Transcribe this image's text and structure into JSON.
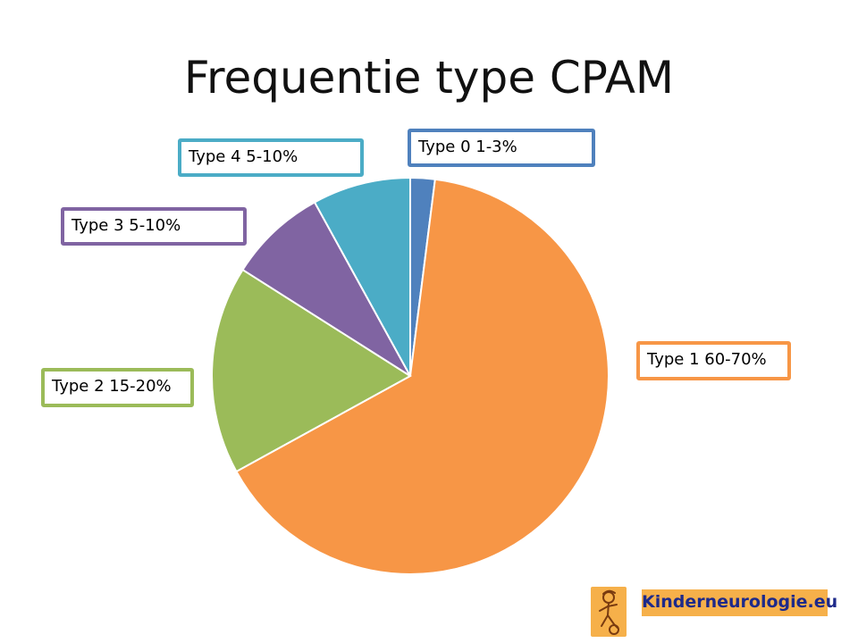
{
  "title": "Frequentie type CPAM",
  "colors": {
    "type0": "#4f81bd",
    "type1": "#f79646",
    "type2": "#9bbb59",
    "type3": "#8064a2",
    "type4": "#4bacc6",
    "logo_bg": "#f6b04a",
    "logo_text": "#1e2a8a"
  },
  "chart_data": {
    "type": "pie",
    "title": "Frequentie type CPAM",
    "categories": [
      "Type 0 1-3%",
      "Type 1 60-70%",
      "Type 2 15-20%",
      "Type 3 5-10%",
      "Type 4 5-10%"
    ],
    "values": [
      2,
      65,
      17,
      8,
      8
    ],
    "start_angle": "12 o'clock",
    "direction": "clockwise",
    "legend": "none",
    "data_labels": [
      "Type 0 1-3%",
      "Type 1 60-70%",
      "Type 2 15-20%",
      "Type 3 5-10%",
      "Type 4 5-10%"
    ]
  },
  "logo": {
    "text": "Kinderneurologie.eu",
    "icon": "child-figure-icon"
  }
}
